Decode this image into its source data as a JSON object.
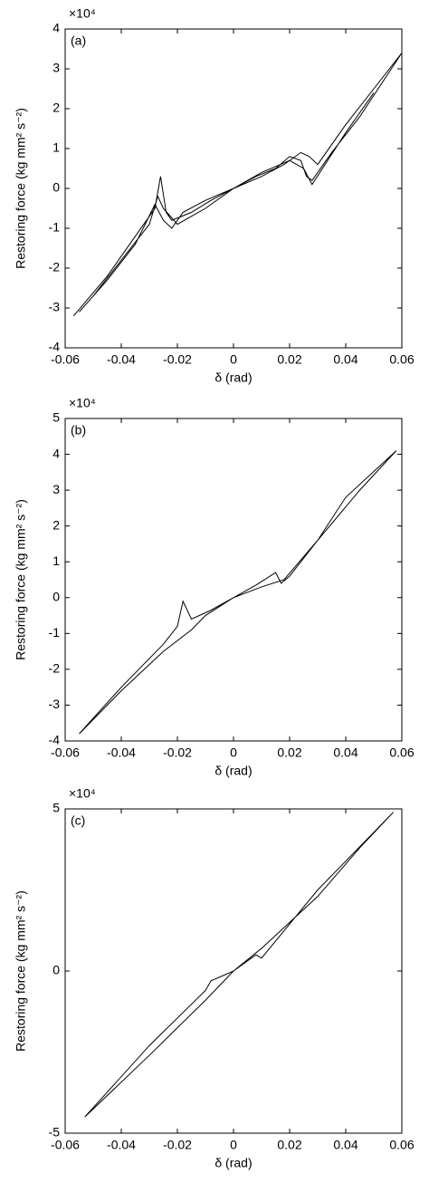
{
  "chart_data": [
    {
      "type": "line",
      "annotation": "(a)",
      "multiplier": "×10⁴",
      "xlabel": "δ (rad)",
      "ylabel": "Restoring force (kg mm² s⁻²)",
      "color": "#000000",
      "xlim": [
        -0.06,
        0.06
      ],
      "xticks": [
        -0.06,
        -0.04,
        -0.02,
        0,
        0.02,
        0.04,
        0.06
      ],
      "ylim": [
        -4,
        4
      ],
      "yticks": [
        -4,
        -3,
        -2,
        -1,
        0,
        1,
        2,
        3,
        4
      ],
      "x": [
        -0.057,
        -0.045,
        -0.035,
        -0.028,
        -0.026,
        -0.024,
        -0.022,
        -0.015,
        -0.008,
        0,
        0.008,
        0.015,
        0.02,
        0.024,
        0.026,
        0.028,
        0.035,
        0.045,
        0.06,
        0.05,
        0.04,
        0.03,
        0.027,
        0.024,
        0.018,
        0.01,
        0,
        -0.01,
        -0.018,
        -0.022,
        -0.025,
        -0.028,
        -0.035,
        -0.045,
        -0.055,
        -0.05,
        -0.04,
        -0.03,
        -0.027,
        -0.025,
        -0.02,
        -0.01,
        0,
        0.01,
        0.02,
        0.025,
        0.028,
        0.04,
        0.05
      ],
      "values": [
        -3.2,
        -2.2,
        -1.2,
        -0.5,
        0.3,
        -0.6,
        -0.8,
        -0.6,
        -0.3,
        0,
        0.3,
        0.5,
        0.8,
        0.7,
        0.3,
        0.2,
        0.9,
        1.8,
        3.4,
        2.5,
        1.6,
        0.6,
        0.8,
        0.9,
        0.6,
        0.3,
        0,
        -0.3,
        -0.6,
        -1.0,
        -0.8,
        -0.4,
        -1.4,
        -2.3,
        -3.1,
        -2.7,
        -1.8,
        -0.9,
        -0.2,
        -0.5,
        -0.9,
        -0.5,
        0,
        0.4,
        0.7,
        0.5,
        0.1,
        1.4,
        2.4
      ]
    },
    {
      "type": "line",
      "annotation": "(b)",
      "multiplier": "×10⁴",
      "xlabel": "δ (rad)",
      "ylabel": "Restoring force (kg mm² s⁻²)",
      "color": "#000000",
      "xlim": [
        -0.06,
        0.06
      ],
      "xticks": [
        -0.06,
        -0.04,
        -0.02,
        0,
        0.02,
        0.04,
        0.06
      ],
      "ylim": [
        -4,
        5
      ],
      "yticks": [
        -4,
        -3,
        -2,
        -1,
        0,
        1,
        2,
        3,
        4,
        5
      ],
      "x": [
        -0.055,
        -0.04,
        -0.025,
        -0.02,
        -0.018,
        -0.015,
        -0.008,
        0,
        0.008,
        0.015,
        0.017,
        0.02,
        0.03,
        0.04,
        0.058,
        0.045,
        0.03,
        0.018,
        0.01,
        0,
        -0.01,
        -0.015,
        -0.025,
        -0.04,
        -0.055
      ],
      "values": [
        -3.8,
        -2.5,
        -1.3,
        -0.8,
        -0.1,
        -0.6,
        -0.35,
        0,
        0.35,
        0.7,
        0.4,
        0.6,
        1.6,
        2.8,
        4.1,
        3.0,
        1.6,
        0.5,
        0.3,
        0,
        -0.5,
        -0.9,
        -1.5,
        -2.6,
        -3.8
      ]
    },
    {
      "type": "line",
      "annotation": "(c)",
      "multiplier": "×10⁴",
      "xlabel": "δ (rad)",
      "ylabel": "Restoring force (kg mm² s⁻²)",
      "color": "#000000",
      "xlim": [
        -0.06,
        0.06
      ],
      "xticks": [
        -0.06,
        -0.04,
        -0.02,
        0,
        0.02,
        0.04,
        0.06
      ],
      "ylim": [
        -5,
        5
      ],
      "yticks": [
        -5,
        0,
        5
      ],
      "x": [
        -0.053,
        -0.03,
        -0.01,
        -0.008,
        0,
        0.008,
        0.01,
        0.03,
        0.057,
        0.045,
        0.03,
        0.01,
        0,
        -0.01,
        -0.03,
        -0.053
      ],
      "values": [
        -4.5,
        -2.3,
        -0.6,
        -0.3,
        0,
        0.5,
        0.4,
        2.5,
        4.9,
        3.8,
        2.3,
        0.7,
        0,
        -0.9,
        -2.6,
        -4.5
      ]
    }
  ]
}
